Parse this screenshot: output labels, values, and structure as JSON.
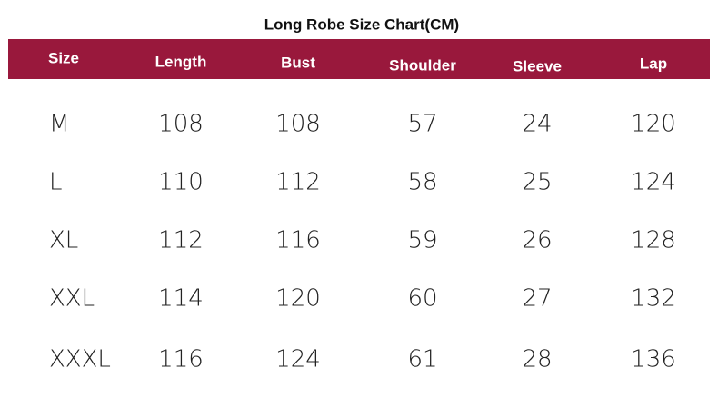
{
  "title": "Long Robe Size Chart(CM)",
  "table": {
    "header": [
      "Size",
      "Length",
      "Bust",
      "Shoulder",
      "Sleeve",
      "Lap"
    ],
    "rows": [
      [
        "M",
        108,
        108,
        57,
        24,
        120
      ],
      [
        "L",
        110,
        112,
        58,
        25,
        124
      ],
      [
        "XL",
        112,
        116,
        59,
        26,
        128
      ],
      [
        "XXL",
        114,
        120,
        60,
        27,
        132
      ],
      [
        "XXXL",
        116,
        124,
        61,
        28,
        136
      ]
    ]
  }
}
